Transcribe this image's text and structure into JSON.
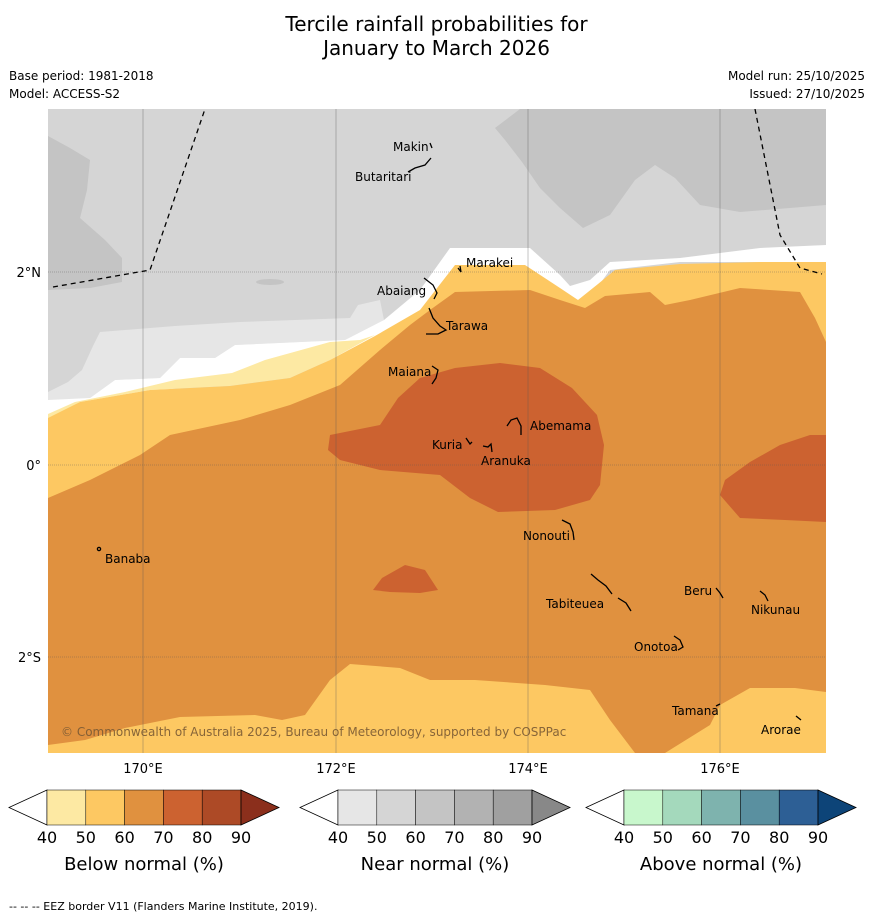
{
  "header": {
    "title_line1": "Tercile rainfall probabilities for",
    "title_line2": "January to March 2026",
    "base_period": "Base period: 1981-2018",
    "model": "Model: ACCESS-S2",
    "model_run": "Model run: 25/10/2025",
    "issued": "Issued: 27/10/2025"
  },
  "map": {
    "lon_labels": [
      "170°E",
      "172°E",
      "174°E",
      "176°E"
    ],
    "lat_labels": [
      "2°N",
      "0°",
      "2°S"
    ],
    "places": [
      "Makin",
      "Butaritari",
      "Marakei",
      "Abaiang",
      "Tarawa",
      "Maiana",
      "Abemama",
      "Kuria",
      "Aranuka",
      "Nonouti",
      "Banaba",
      "Tabiteuea",
      "Beru",
      "Nikunau",
      "Onotoa",
      "Tamana",
      "Arorae"
    ],
    "copyright": "© Commonwealth of Australia 2025, Bureau of Meteorology, supported by COSPPac"
  },
  "colorbars": [
    {
      "label": "Below normal (%)",
      "ticks": [
        "40",
        "50",
        "60",
        "70",
        "80",
        "90"
      ],
      "colors": [
        "#ffffff",
        "#fde9a3",
        "#fdc862",
        "#e0913f",
        "#cc6230",
        "#ad4a26",
        "#8b2f1c"
      ]
    },
    {
      "label": "Near normal (%)",
      "ticks": [
        "40",
        "50",
        "60",
        "70",
        "80",
        "90"
      ],
      "colors": [
        "#ffffff",
        "#e6e6e6",
        "#d5d5d5",
        "#c4c4c4",
        "#b2b2b2",
        "#a0a0a0",
        "#888888"
      ]
    },
    {
      "label": "Above normal (%)",
      "ticks": [
        "40",
        "50",
        "60",
        "70",
        "80",
        "90"
      ],
      "colors": [
        "#ffffff",
        "#c8f7cc",
        "#a4d9bc",
        "#7eb3ae",
        "#5a90a0",
        "#2d5f95",
        "#0d4478"
      ]
    }
  ],
  "footer": {
    "eez_note": "--  --  -- EEZ border V11 (Flanders Marine Institute, 2019)."
  }
}
